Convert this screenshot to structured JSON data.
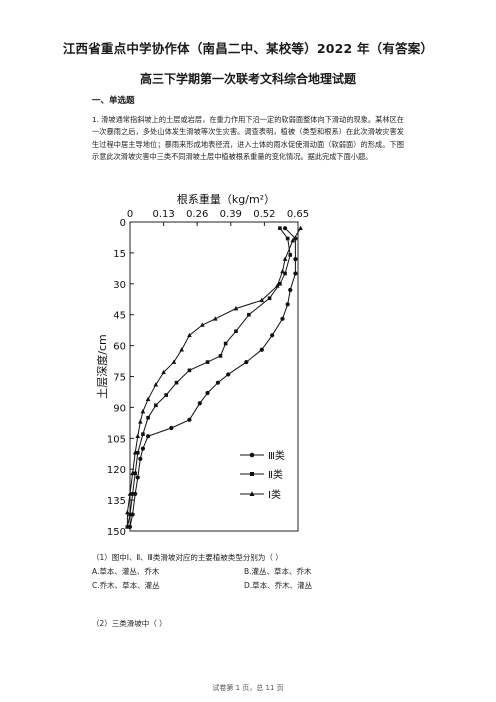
{
  "header": {
    "title": "江西省重点中学协作体（南昌二中、某校等）2022 年（有答案）",
    "subtitle": "高三下学期第一次联考文科综合地理试题",
    "section": "一、单选题"
  },
  "question": {
    "text": "1. 滑坡通常指斜坡上的土层或岩层，在重力作用下沿一定的软弱面整体向下滑动的现象。某林区在一次暴雨之后，多处山体发生滑坡等次生灾害。调查表明，植被（类型和根系）在此次滑坡灾害发生过程中居主导地位；暴雨来形成地表径流，进入土体的雨水促使滑动面（软弱面）的形成。下图示意此次滑坡灾害中三类不同滑坡土层中植被根系重量的变化情况。据此完成下面小题。",
    "sub1": "（1）图中Ⅰ、Ⅱ、Ⅲ类滑坡对应的主要植被类型分别为（   ）",
    "optA": "A.草本、灌丛、乔木",
    "optB": "B.灌丛、草本、乔木",
    "optC": "C.乔木、草本、灌丛",
    "optD": "D.草本、乔木、灌丛",
    "sub2": "（2）三类滑坡中（   ）"
  },
  "footer": "试卷第 1 页，总 11 页",
  "chart_data": {
    "type": "line",
    "title": "根系重量（kg/m²）",
    "xlabel": "根系重量（kg/m²）",
    "ylabel": "土层深度/cm",
    "x_ticks": [
      "0",
      "0.13",
      "0.26",
      "0.39",
      "0.52",
      "0.65"
    ],
    "y_ticks": [
      "0",
      "15",
      "30",
      "45",
      "60",
      "75",
      "90",
      "105",
      "120",
      "135",
      "150"
    ],
    "xlim": [
      0,
      0.65
    ],
    "ylim": [
      0,
      150
    ],
    "y_inverted": true,
    "legend_position": "bottom-right",
    "series": [
      {
        "name": "Ⅲ类",
        "marker": "circle",
        "points": [
          [
            0.6,
            3
          ],
          [
            0.64,
            8
          ],
          [
            0.64,
            18
          ],
          [
            0.64,
            25
          ],
          [
            0.62,
            33
          ],
          [
            0.61,
            40
          ],
          [
            0.59,
            47
          ],
          [
            0.55,
            55
          ],
          [
            0.51,
            62
          ],
          [
            0.45,
            68
          ],
          [
            0.38,
            74
          ],
          [
            0.34,
            78
          ],
          [
            0.3,
            83
          ],
          [
            0.27,
            88
          ],
          [
            0.23,
            96
          ],
          [
            0.16,
            100
          ],
          [
            0.07,
            104
          ],
          [
            0.05,
            110
          ],
          [
            0.04,
            115
          ],
          [
            0.03,
            124
          ],
          [
            0.02,
            132
          ],
          [
            0.01,
            142
          ],
          [
            0,
            148
          ]
        ]
      },
      {
        "name": "Ⅱ类",
        "marker": "square",
        "points": [
          [
            0.58,
            3
          ],
          [
            0.61,
            8
          ],
          [
            0.62,
            16
          ],
          [
            0.6,
            25
          ],
          [
            0.58,
            30
          ],
          [
            0.54,
            37
          ],
          [
            0.46,
            45
          ],
          [
            0.41,
            53
          ],
          [
            0.37,
            59
          ],
          [
            0.35,
            65
          ],
          [
            0.3,
            68
          ],
          [
            0.23,
            72
          ],
          [
            0.18,
            78
          ],
          [
            0.14,
            84
          ],
          [
            0.1,
            89
          ],
          [
            0.07,
            95
          ],
          [
            0.05,
            103
          ],
          [
            0.03,
            112
          ],
          [
            0.02,
            122
          ],
          [
            0.01,
            132
          ],
          [
            0,
            142
          ],
          [
            -0.01,
            148
          ]
        ]
      },
      {
        "name": "Ⅰ类",
        "marker": "triangle",
        "points": [
          [
            0.66,
            3
          ],
          [
            0.63,
            9
          ],
          [
            0.6,
            18
          ],
          [
            0.59,
            24
          ],
          [
            0.57,
            31
          ],
          [
            0.51,
            38
          ],
          [
            0.41,
            42
          ],
          [
            0.33,
            47
          ],
          [
            0.28,
            50
          ],
          [
            0.23,
            55
          ],
          [
            0.2,
            62
          ],
          [
            0.17,
            68
          ],
          [
            0.13,
            73
          ],
          [
            0.1,
            79
          ],
          [
            0.07,
            86
          ],
          [
            0.05,
            92
          ],
          [
            0.04,
            97
          ],
          [
            0.03,
            104
          ],
          [
            0.02,
            112
          ],
          [
            0.01,
            122
          ],
          [
            0,
            132
          ],
          [
            -0.01,
            141
          ],
          [
            -0.01,
            148
          ]
        ]
      }
    ]
  }
}
